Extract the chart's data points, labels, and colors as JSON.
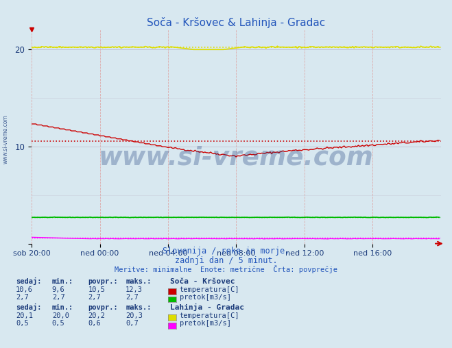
{
  "title": "Soča - Kršovec & Lahinja - Gradac",
  "title_color": "#2255bb",
  "bg_color": "#d8e8f0",
  "plot_bg_color": "#d8e8f0",
  "xlim": [
    0,
    288
  ],
  "ylim": [
    0,
    22
  ],
  "yticks": [
    0,
    10,
    20
  ],
  "ytick_labels": [
    "",
    "10",
    "20"
  ],
  "xtick_labels": [
    "sob 20:00",
    "ned 00:00",
    "ned 04:00",
    "ned 08:00",
    "ned 12:00",
    "ned 16:00"
  ],
  "xtick_positions": [
    0,
    48,
    96,
    144,
    192,
    240
  ],
  "grid_color": "#c0c0d0",
  "grid_color_minor": "#d8c8d8",
  "watermark": "www.si-vreme.com",
  "watermark_color": "#1a3a7a",
  "subtitle1": "Slovenija / reke in morje.",
  "subtitle2": "zadnji dan / 5 minut.",
  "subtitle3": "Meritve: minimalne  Enote: metrične  Črta: povprečje",
  "subtitle_color": "#2255bb",
  "legend_header1": "Soča - Kršovec",
  "legend_header2": "Lahinja - Gradac",
  "legend_color": "#1a3a7a",
  "soca_temp_color": "#cc0000",
  "soca_flow_color": "#00bb00",
  "lahinja_temp_color": "#dddd00",
  "lahinja_flow_color": "#ff00ff",
  "avg_soca_temp": 10.5,
  "avg_lahinja_temp": 20.2,
  "avg_soca_flow": 2.7,
  "avg_lahinja_flow": 0.6,
  "arrow_color": "#cc0000",
  "col_headers": [
    "sedaj:",
    "min.:",
    "povpr.:",
    "maks.:"
  ],
  "soca_rows": [
    [
      "10,6",
      "9,6",
      "10,5",
      "12,3"
    ],
    [
      "2,7",
      "2,7",
      "2,7",
      "2,7"
    ]
  ],
  "lahinja_rows": [
    [
      "20,1",
      "20,0",
      "20,2",
      "20,3"
    ],
    [
      "0,5",
      "0,5",
      "0,6",
      "0,7"
    ]
  ],
  "soca_labels": [
    "temperatura[C]",
    "pretok[m3/s]"
  ],
  "lahinja_labels": [
    "temperatura[C]",
    "pretok[m3/s]"
  ]
}
